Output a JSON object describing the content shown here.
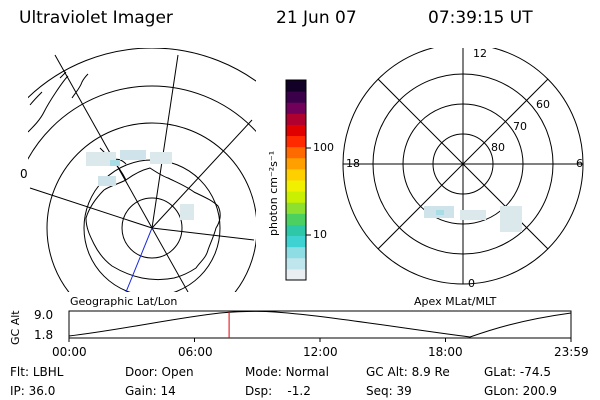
{
  "header": {
    "title": "Ultraviolet Imager",
    "date": "21 Jun 07",
    "time": "07:39:15 UT"
  },
  "colorbar": {
    "unit_label": "photon cm⁻²s⁻¹",
    "ticks": [
      {
        "label": "100",
        "value": 100
      },
      {
        "label": "10",
        "value": 10
      }
    ],
    "colors": [
      "#e8eef2",
      "#bfe6ec",
      "#8fdde4",
      "#3fd2d2",
      "#2ec8a8",
      "#4cd060",
      "#8ee030",
      "#c8f000",
      "#f0f000",
      "#ffd000",
      "#ffa000",
      "#ff6a00",
      "#ff2a00",
      "#e00000",
      "#b00030",
      "#70005a",
      "#3a004a",
      "#120026"
    ]
  },
  "left_panel": {
    "label": "Geographic Lat/Lon",
    "side_label": "0"
  },
  "right_panel": {
    "label": "Apex MLat/MLT",
    "mlt_labels": {
      "top": "12",
      "left": "18",
      "right": "6",
      "bottom": "0"
    },
    "mlat_labels": [
      "60",
      "70",
      "80"
    ]
  },
  "orbit_plot": {
    "axis_label": "GC Alt",
    "y_ticks": [
      "9.0",
      "1.8"
    ],
    "x_ticks": [
      "00:00",
      "06:00",
      "12:00",
      "18:00",
      "23:59"
    ],
    "current_time_hours": 7.654
  },
  "status": {
    "flt": {
      "label": "Flt:",
      "value": "LBHL"
    },
    "ip": {
      "label": "IP:",
      "value": "36.0"
    },
    "door": {
      "label": "Door:",
      "value": "Open"
    },
    "gain": {
      "label": "Gain:",
      "value": "14"
    },
    "mode": {
      "label": "Mode:",
      "value": "Normal"
    },
    "dsp": {
      "label": "Dsp:",
      "value": "-1.2"
    },
    "gcalt": {
      "label": "GC Alt:",
      "value": "8.9 Re"
    },
    "seq": {
      "label": "Seq:",
      "value": "39"
    },
    "glat": {
      "label": "GLat:",
      "value": "-74.5"
    },
    "glon": {
      "label": "GLon:",
      "value": "200.9"
    }
  }
}
